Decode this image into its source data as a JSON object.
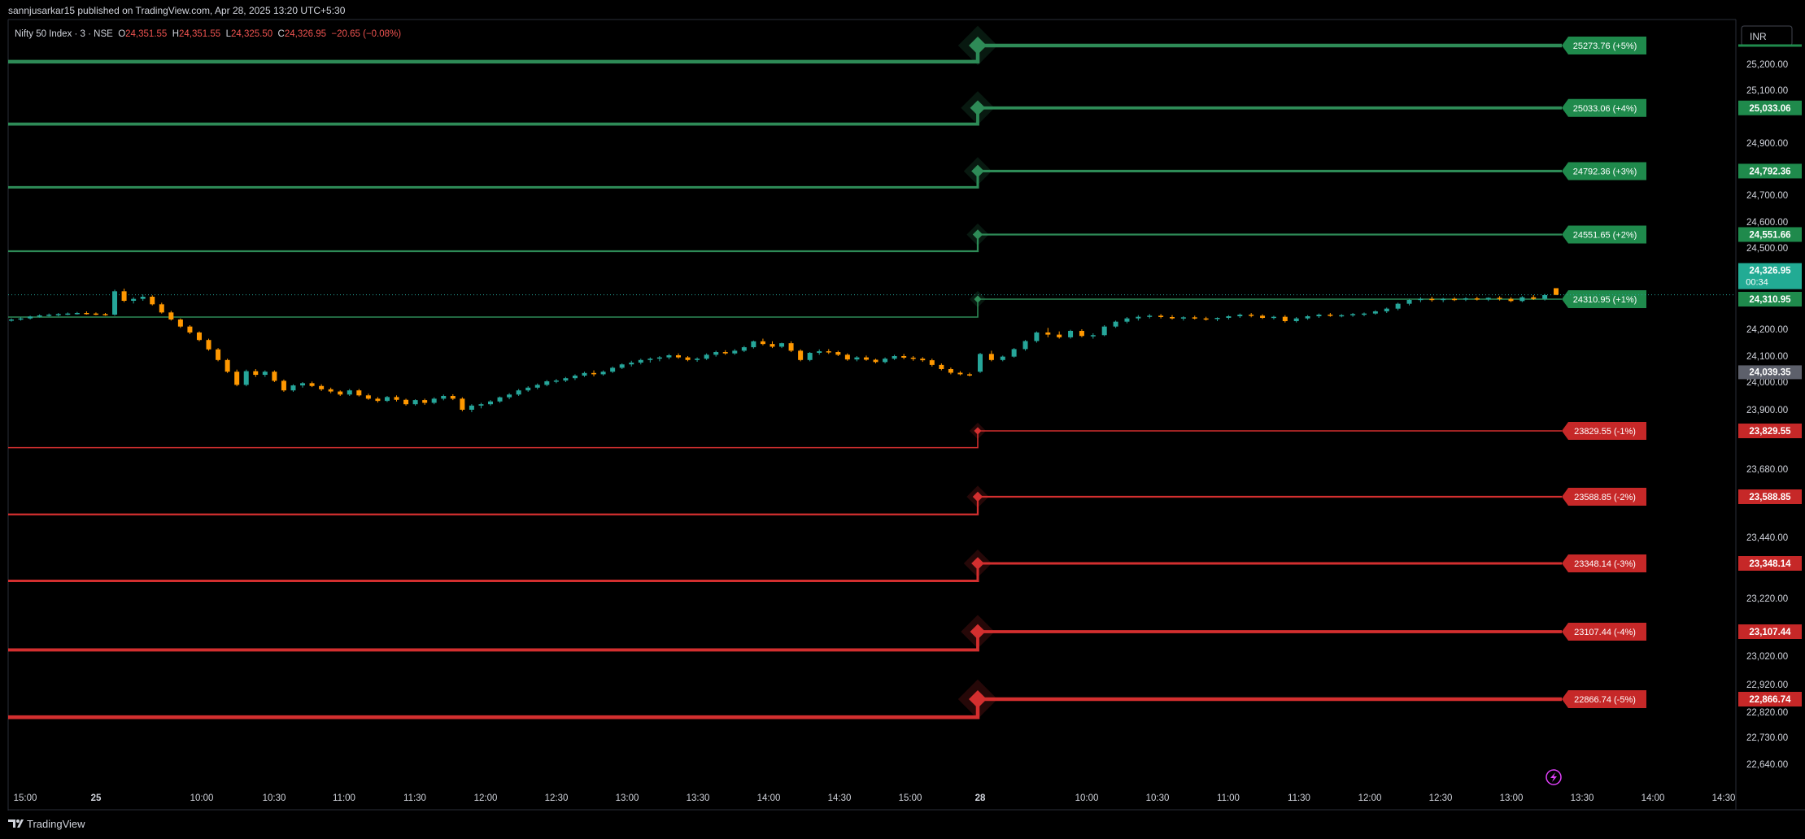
{
  "header": {
    "publisher": "sannjusarkar15 published on TradingView.com, Apr 28, 2025 13:20 UTC+5:30"
  },
  "legend": {
    "symbol": "Nifty 50 Index · 3 · NSE",
    "o_label": "O",
    "o_value": "24,351.55",
    "h_label": "H",
    "h_value": "24,351.55",
    "l_label": "L",
    "l_value": "24,325.50",
    "c_label": "C",
    "c_value": "24,326.95",
    "change": "−20.65 (−0.08%)"
  },
  "currency_button": "INR",
  "footer": {
    "brand": "TradingView"
  },
  "colors": {
    "background": "#000000",
    "bull": "#26a69a",
    "bear": "#ff9800",
    "up_level": "#2e8b57",
    "up_label": "#1f8a4c",
    "down_level": "#d32f2f",
    "down_label": "#c62828",
    "axis_text": "#d1d4dc",
    "ref_line": "#26a69a"
  },
  "chart_data": {
    "type": "candlestick",
    "symbol": "Nifty 50 Index",
    "interval": "3",
    "exchange": "NSE",
    "y_axis": {
      "ticks": [
        {
          "label": "25,200.00",
          "value": 25200
        },
        {
          "label": "25,100.00",
          "value": 25100
        },
        {
          "label": "24,900.00",
          "value": 24900
        },
        {
          "label": "24,700.00",
          "value": 24700
        },
        {
          "label": "24,600.00",
          "value": 24600
        },
        {
          "label": "24,500.00",
          "value": 24500
        },
        {
          "label": "24,200.00",
          "value": 24200
        },
        {
          "label": "24,100.00",
          "value": 24100
        },
        {
          "label": "24,000.00",
          "value": 24000
        },
        {
          "label": "23,900.00",
          "value": 23900
        },
        {
          "label": "23,680.00",
          "value": 23680
        },
        {
          "label": "23,440.00",
          "value": 23440
        },
        {
          "label": "23,220.00",
          "value": 23220
        },
        {
          "label": "23,020.00",
          "value": 23020
        },
        {
          "label": "22,920.00",
          "value": 22920
        },
        {
          "label": "22,820.00",
          "value": 22820
        },
        {
          "label": "22,730.00",
          "value": 22730
        },
        {
          "label": "22,640.00",
          "value": 22640
        }
      ]
    },
    "x_axis": {
      "ticks": [
        {
          "label": "15:00",
          "bold": false
        },
        {
          "label": "25",
          "bold": true
        },
        {
          "label": "10:00",
          "bold": false
        },
        {
          "label": "10:30",
          "bold": false
        },
        {
          "label": "11:00",
          "bold": false
        },
        {
          "label": "11:30",
          "bold": false
        },
        {
          "label": "12:00",
          "bold": false
        },
        {
          "label": "12:30",
          "bold": false
        },
        {
          "label": "13:00",
          "bold": false
        },
        {
          "label": "13:30",
          "bold": false
        },
        {
          "label": "14:00",
          "bold": false
        },
        {
          "label": "14:30",
          "bold": false
        },
        {
          "label": "15:00",
          "bold": false
        },
        {
          "label": "28",
          "bold": true
        },
        {
          "label": "10:00",
          "bold": false
        },
        {
          "label": "10:30",
          "bold": false
        },
        {
          "label": "11:00",
          "bold": false
        },
        {
          "label": "11:30",
          "bold": false
        },
        {
          "label": "12:00",
          "bold": false
        },
        {
          "label": "12:30",
          "bold": false
        },
        {
          "label": "13:00",
          "bold": false
        },
        {
          "label": "13:30",
          "bold": false
        },
        {
          "label": "14:00",
          "bold": false
        },
        {
          "label": "14:30",
          "bold": false
        }
      ]
    },
    "levels": [
      {
        "label": "25273.76 (+5%)",
        "axis_label": "",
        "value": 25273.76,
        "dir": "up",
        "prev_value": 25210,
        "weight": 5
      },
      {
        "label": "25033.06 (+4%)",
        "axis_label": "25,033.06",
        "value": 25033.06,
        "dir": "up",
        "prev_value": 24972,
        "weight": 4
      },
      {
        "label": "24792.36 (+3%)",
        "axis_label": "24,792.36",
        "value": 24792.36,
        "dir": "up",
        "prev_value": 24730,
        "weight": 3
      },
      {
        "label": "24551.65 (+2%)",
        "axis_label": "24,551.66",
        "value": 24551.65,
        "dir": "up",
        "prev_value": 24488,
        "weight": 2
      },
      {
        "label": "24310.95 (+1%)",
        "axis_label": "24,310.95",
        "value": 24310.95,
        "dir": "up",
        "prev_value": 24245,
        "weight": 1
      },
      {
        "label": "23829.55 (-1%)",
        "axis_label": "23,829.55",
        "value": 23829.55,
        "dir": "down",
        "prev_value": 23764,
        "weight": 1
      },
      {
        "label": "23588.85 (-2%)",
        "axis_label": "23,588.85",
        "value": 23588.85,
        "dir": "down",
        "prev_value": 23524,
        "weight": 2
      },
      {
        "label": "23348.14 (-3%)",
        "axis_label": "23,348.14",
        "value": 23348.14,
        "dir": "down",
        "prev_value": 23284,
        "weight": 3
      },
      {
        "label": "23107.44 (-4%)",
        "axis_label": "23,107.44",
        "value": 23107.44,
        "dir": "down",
        "prev_value": 23042,
        "weight": 4
      },
      {
        "label": "22866.74 (-5%)",
        "axis_label": "22,866.74",
        "value": 22866.74,
        "dir": "down",
        "prev_value": 22802,
        "weight": 5
      }
    ],
    "last_price": {
      "label": "24,326.95",
      "countdown": "00:34",
      "value": 24326.95
    },
    "marker_price": {
      "label": "24,039.35",
      "value": 24039.35
    },
    "candles": [
      [
        24233,
        24240,
        24228,
        24236
      ],
      [
        24236,
        24244,
        24232,
        24240
      ],
      [
        24240,
        24250,
        24236,
        24247
      ],
      [
        24247,
        24255,
        24243,
        24251
      ],
      [
        24251,
        24258,
        24247,
        24254
      ],
      [
        24254,
        24260,
        24248,
        24256
      ],
      [
        24256,
        24262,
        24252,
        24258
      ],
      [
        24258,
        24264,
        24254,
        24260
      ],
      [
        24260,
        24266,
        24254,
        24258
      ],
      [
        24258,
        24262,
        24252,
        24256
      ],
      [
        24256,
        24260,
        24250,
        24254
      ],
      [
        24254,
        24346,
        24250,
        24340
      ],
      [
        24340,
        24350,
        24300,
        24305
      ],
      [
        24305,
        24318,
        24295,
        24312
      ],
      [
        24312,
        24328,
        24305,
        24320
      ],
      [
        24320,
        24325,
        24288,
        24292
      ],
      [
        24292,
        24298,
        24258,
        24262
      ],
      [
        24262,
        24268,
        24232,
        24236
      ],
      [
        24236,
        24240,
        24205,
        24210
      ],
      [
        24210,
        24215,
        24182,
        24188
      ],
      [
        24188,
        24192,
        24155,
        24160
      ],
      [
        24160,
        24165,
        24120,
        24125
      ],
      [
        24125,
        24130,
        24080,
        24085
      ],
      [
        24085,
        24090,
        24035,
        24040
      ],
      [
        24040,
        24048,
        23985,
        23990
      ],
      [
        23990,
        24048,
        23985,
        24042
      ],
      [
        24042,
        24050,
        24020,
        24028
      ],
      [
        24028,
        24045,
        24020,
        24040
      ],
      [
        24040,
        24045,
        24000,
        24005
      ],
      [
        24005,
        24010,
        23965,
        23970
      ],
      [
        23970,
        23992,
        23965,
        23988
      ],
      [
        23988,
        24000,
        23980,
        23996
      ],
      [
        23996,
        24002,
        23982,
        23986
      ],
      [
        23986,
        23992,
        23968,
        23974
      ],
      [
        23974,
        23980,
        23960,
        23966
      ],
      [
        23966,
        23970,
        23950,
        23955
      ],
      [
        23955,
        23975,
        23950,
        23970
      ],
      [
        23970,
        23975,
        23948,
        23952
      ],
      [
        23952,
        23958,
        23936,
        23940
      ],
      [
        23940,
        23946,
        23926,
        23932
      ],
      [
        23932,
        23950,
        23928,
        23946
      ],
      [
        23946,
        23952,
        23930,
        23936
      ],
      [
        23936,
        23940,
        23915,
        23920
      ],
      [
        23920,
        23938,
        23915,
        23935
      ],
      [
        23935,
        23940,
        23918,
        23925
      ],
      [
        23925,
        23945,
        23920,
        23940
      ],
      [
        23940,
        23955,
        23934,
        23950
      ],
      [
        23950,
        23956,
        23935,
        23940
      ],
      [
        23940,
        23945,
        23895,
        23900
      ],
      [
        23900,
        23920,
        23892,
        23915
      ],
      [
        23915,
        23925,
        23905,
        23920
      ],
      [
        23920,
        23935,
        23915,
        23930
      ],
      [
        23930,
        23948,
        23925,
        23945
      ],
      [
        23945,
        23960,
        23938,
        23955
      ],
      [
        23955,
        23975,
        23950,
        23970
      ],
      [
        23970,
        23985,
        23965,
        23980
      ],
      [
        23980,
        23995,
        23974,
        23990
      ],
      [
        23990,
        24008,
        23985,
        24003
      ],
      [
        24003,
        24012,
        23996,
        24006
      ],
      [
        24006,
        24020,
        24000,
        24015
      ],
      [
        24015,
        24030,
        24008,
        24025
      ],
      [
        24025,
        24040,
        24020,
        24035
      ],
      [
        24035,
        24045,
        24022,
        24030
      ],
      [
        24030,
        24045,
        24025,
        24040
      ],
      [
        24040,
        24060,
        24035,
        24055
      ],
      [
        24055,
        24072,
        24050,
        24068
      ],
      [
        24068,
        24082,
        24060,
        24075
      ],
      [
        24075,
        24090,
        24068,
        24085
      ],
      [
        24085,
        24095,
        24075,
        24090
      ],
      [
        24090,
        24100,
        24080,
        24095
      ],
      [
        24095,
        24108,
        24088,
        24103
      ],
      [
        24103,
        24110,
        24090,
        24095
      ],
      [
        24095,
        24100,
        24080,
        24085
      ],
      [
        24085,
        24095,
        24078,
        24090
      ],
      [
        24090,
        24110,
        24085,
        24105
      ],
      [
        24105,
        24120,
        24098,
        24115
      ],
      [
        24115,
        24122,
        24105,
        24110
      ],
      [
        24110,
        24126,
        24105,
        24120
      ],
      [
        24120,
        24138,
        24115,
        24133
      ],
      [
        24133,
        24158,
        24128,
        24155
      ],
      [
        24155,
        24165,
        24140,
        24145
      ],
      [
        24145,
        24155,
        24130,
        24135
      ],
      [
        24135,
        24150,
        24130,
        24148
      ],
      [
        24148,
        24155,
        24115,
        24120
      ],
      [
        24120,
        24125,
        24080,
        24085
      ],
      [
        24085,
        24115,
        24080,
        24112
      ],
      [
        24112,
        24125,
        24105,
        24118
      ],
      [
        24118,
        24126,
        24108,
        24115
      ],
      [
        24115,
        24120,
        24100,
        24105
      ],
      [
        24105,
        24110,
        24082,
        24087
      ],
      [
        24087,
        24100,
        24080,
        24095
      ],
      [
        24095,
        24102,
        24082,
        24086
      ],
      [
        24086,
        24090,
        24072,
        24077
      ],
      [
        24077,
        24095,
        24072,
        24090
      ],
      [
        24090,
        24105,
        24085,
        24100
      ],
      [
        24100,
        24108,
        24088,
        24094
      ],
      [
        24094,
        24100,
        24082,
        24090
      ],
      [
        24090,
        24096,
        24078,
        24084
      ],
      [
        24084,
        24090,
        24060,
        24066
      ],
      [
        24066,
        24072,
        24045,
        24050
      ],
      [
        24050,
        24056,
        24030,
        24036
      ],
      [
        24036,
        24042,
        24026,
        24030
      ],
      [
        24030,
        24036,
        24022,
        24028
      ],
      [
        24040,
        24112,
        24035,
        24108
      ],
      [
        24108,
        24120,
        24080,
        24085
      ],
      [
        24085,
        24102,
        24080,
        24098
      ],
      [
        24098,
        24130,
        24094,
        24126
      ],
      [
        24126,
        24160,
        24120,
        24156
      ],
      [
        24156,
        24192,
        24150,
        24188
      ],
      [
        24188,
        24205,
        24170,
        24180
      ],
      [
        24180,
        24192,
        24165,
        24170
      ],
      [
        24170,
        24198,
        24165,
        24194
      ],
      [
        24194,
        24200,
        24170,
        24175
      ],
      [
        24175,
        24185,
        24165,
        24178
      ],
      [
        24178,
        24215,
        24174,
        24210
      ],
      [
        24210,
        24232,
        24205,
        24228
      ],
      [
        24228,
        24245,
        24222,
        24240
      ],
      [
        24240,
        24252,
        24232,
        24246
      ],
      [
        24246,
        24256,
        24240,
        24250
      ],
      [
        24250,
        24256,
        24240,
        24245
      ],
      [
        24245,
        24252,
        24236,
        24240
      ],
      [
        24240,
        24248,
        24232,
        24244
      ],
      [
        24244,
        24250,
        24236,
        24240
      ],
      [
        24240,
        24246,
        24232,
        24238
      ],
      [
        24238,
        24244,
        24230,
        24242
      ],
      [
        24242,
        24252,
        24236,
        24248
      ],
      [
        24248,
        24258,
        24242,
        24254
      ],
      [
        24254,
        24260,
        24244,
        24250
      ],
      [
        24250,
        24255,
        24238,
        24242
      ],
      [
        24242,
        24250,
        24236,
        24246
      ],
      [
        24246,
        24252,
        24225,
        24230
      ],
      [
        24230,
        24245,
        24225,
        24240
      ],
      [
        24240,
        24252,
        24235,
        24248
      ],
      [
        24248,
        24258,
        24242,
        24254
      ],
      [
        24254,
        24260,
        24246,
        24250
      ],
      [
        24250,
        24256,
        24244,
        24252
      ],
      [
        24252,
        24260,
        24246,
        24256
      ],
      [
        24256,
        24262,
        24248,
        24258
      ],
      [
        24258,
        24270,
        24254,
        24266
      ],
      [
        24266,
        24280,
        24260,
        24276
      ],
      [
        24276,
        24298,
        24270,
        24294
      ],
      [
        24294,
        24312,
        24288,
        24308
      ],
      [
        24308,
        24318,
        24300,
        24312
      ],
      [
        24312,
        24320,
        24302,
        24308
      ],
      [
        24308,
        24316,
        24300,
        24312
      ],
      [
        24312,
        24318,
        24304,
        24310
      ],
      [
        24310,
        24318,
        24304,
        24314
      ],
      [
        24314,
        24320,
        24306,
        24310
      ],
      [
        24310,
        24318,
        24304,
        24316
      ],
      [
        24316,
        24322,
        24306,
        24312
      ],
      [
        24312,
        24318,
        24300,
        24304
      ],
      [
        24304,
        24322,
        24300,
        24318
      ],
      [
        24318,
        24326,
        24308,
        24312
      ],
      [
        24312,
        24330,
        24306,
        24326
      ],
      [
        24351.55,
        24351.55,
        24325.5,
        24326.95
      ]
    ]
  }
}
